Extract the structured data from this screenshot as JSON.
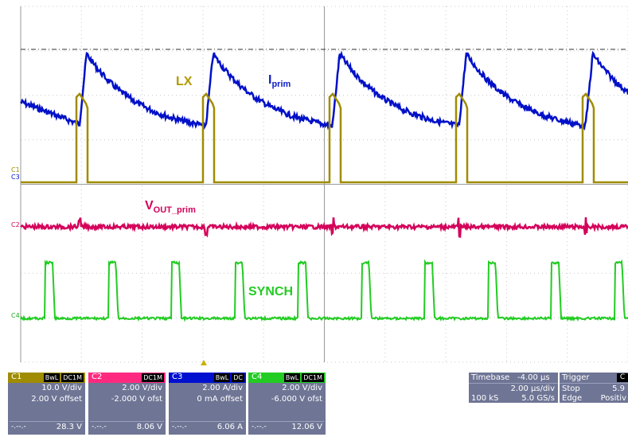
{
  "scope": {
    "labels": {
      "lx": "LX",
      "iprim_main": "I",
      "iprim_sub": "prim",
      "vout_main": "V",
      "vout_sub": "OUT_prim",
      "synch": "SYNCH"
    },
    "markers": {
      "c1": "C1",
      "c3": "C3",
      "c2": "C2",
      "c4": "C4"
    },
    "colors": {
      "c1": "#a08c00",
      "c2": "#d4005a",
      "c3": "#0010c8",
      "c4": "#22cc22",
      "panel": "#6f7595"
    }
  },
  "channels": [
    {
      "name": "C1",
      "tags": [
        "BwL",
        "DC1M"
      ],
      "vdiv": "10.0 V/div",
      "offset": "2.00 V offset",
      "dash": "-.--.-",
      "value": "28.3 V",
      "color": "#a08c00"
    },
    {
      "name": "C2",
      "tags": [
        "DC1M"
      ],
      "vdiv": "2.00 V/div",
      "offset": "-2.000 V ofst",
      "dash": "-.--.-",
      "value": "8.06 V",
      "color": "#ff2a80"
    },
    {
      "name": "C3",
      "tags": [
        "BwL",
        "DC"
      ],
      "vdiv": "2.00 A/div",
      "offset": "0 mA offset",
      "dash": "-.--.-",
      "value": "6.06 A",
      "color": "#0010d0"
    },
    {
      "name": "C4",
      "tags": [
        "BwL",
        "DC1M"
      ],
      "vdiv": "2.00 V/div",
      "offset": "-6.000 V ofst",
      "dash": "-.--.-",
      "value": "12.06 V",
      "color": "#22cc22"
    }
  ],
  "timebase": {
    "title": "Timebase",
    "delay": "-4.00 µs",
    "div": "2.00 µs/div",
    "samples": "100 kS",
    "rate": "5.0 GS/s"
  },
  "trigger": {
    "title": "Trigger",
    "channel": "C",
    "mode": "Stop",
    "level": "5.9",
    "type": "Edge",
    "slope": "Positiv"
  }
}
